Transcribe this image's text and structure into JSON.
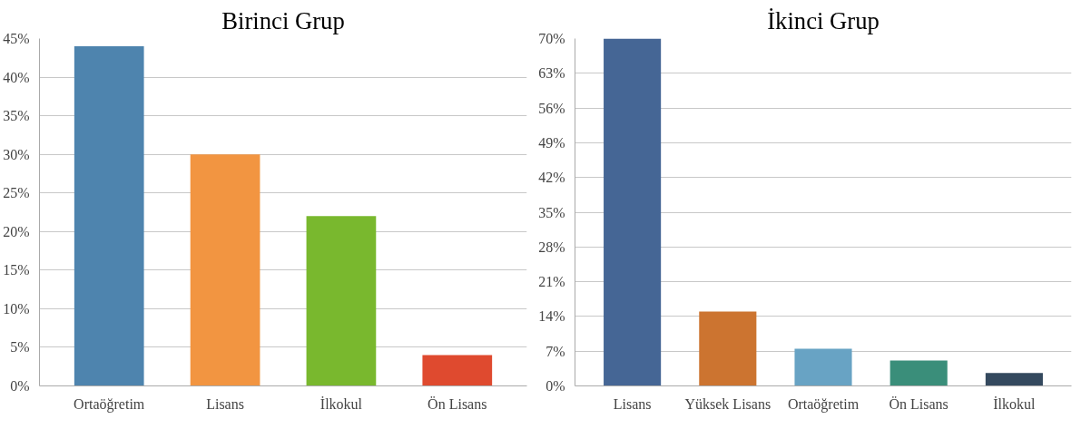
{
  "chart_data": [
    {
      "type": "bar",
      "title": "Birinci Grup",
      "categories": [
        "Ortaöğretim",
        "Lisans",
        "İlkokul",
        "Ön Lisans"
      ],
      "values": [
        44,
        30,
        22,
        4
      ],
      "colors": [
        "#4e84ae",
        "#f29541",
        "#79b82e",
        "#df4a2f"
      ],
      "ylim": [
        0,
        45
      ],
      "yticks": [
        {
          "value": 0,
          "label": "0%"
        },
        {
          "value": 5,
          "label": "5%"
        },
        {
          "value": 10,
          "label": "10%"
        },
        {
          "value": 15,
          "label": "15%"
        },
        {
          "value": 20,
          "label": "20%"
        },
        {
          "value": 25,
          "label": "25%"
        },
        {
          "value": 30,
          "label": "30%"
        },
        {
          "value": 35,
          "label": "35%"
        },
        {
          "value": 40,
          "label": "40%"
        },
        {
          "value": 45,
          "label": "45%"
        }
      ],
      "grid": "y"
    },
    {
      "type": "bar",
      "title": "İkinci Grup",
      "categories": [
        "Lisans",
        "Yüksek Lisans",
        "Ortaöğretim",
        "Ön Lisans",
        "İlkokul"
      ],
      "values": [
        70,
        15,
        7.5,
        5.1,
        2.6
      ],
      "colors": [
        "#456695",
        "#cc7430",
        "#68a3c4",
        "#3a8e7a",
        "#34495e"
      ],
      "ylim": [
        0,
        70
      ],
      "yticks": [
        {
          "value": 0,
          "label": "0%"
        },
        {
          "value": 7,
          "label": "7%"
        },
        {
          "value": 14,
          "label": "14%"
        },
        {
          "value": 21,
          "label": "21%"
        },
        {
          "value": 28,
          "label": "28%"
        },
        {
          "value": 35,
          "label": "35%"
        },
        {
          "value": 42,
          "label": "42%"
        },
        {
          "value": 49,
          "label": "49%"
        },
        {
          "value": 56,
          "label": "56%"
        },
        {
          "value": 63,
          "label": "63%"
        },
        {
          "value": 70,
          "label": "70%"
        }
      ],
      "grid": "y"
    }
  ]
}
